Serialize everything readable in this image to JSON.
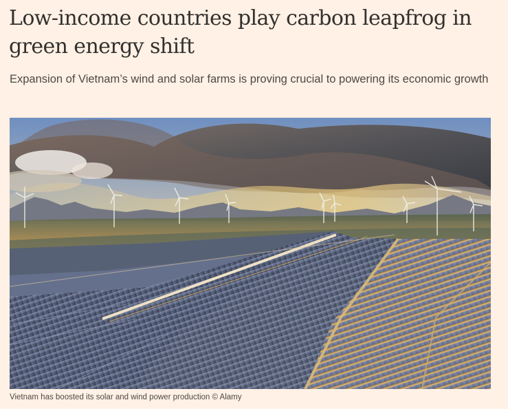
{
  "article": {
    "headline": "Low-income countries play carbon leapfrog in green energy shift",
    "standfirst": "Expansion of Vietnam’s wind and solar farms is proving crucial to powering its economic growth",
    "image": {
      "caption": "Vietnam has boosted its solar and wind power production © Alamy",
      "subject": "aerial-solar-farm-with-wind-turbines"
    }
  },
  "colors": {
    "page_background": "#fff1e5",
    "headline_text": "#33302e",
    "body_text": "#4d4845"
  }
}
